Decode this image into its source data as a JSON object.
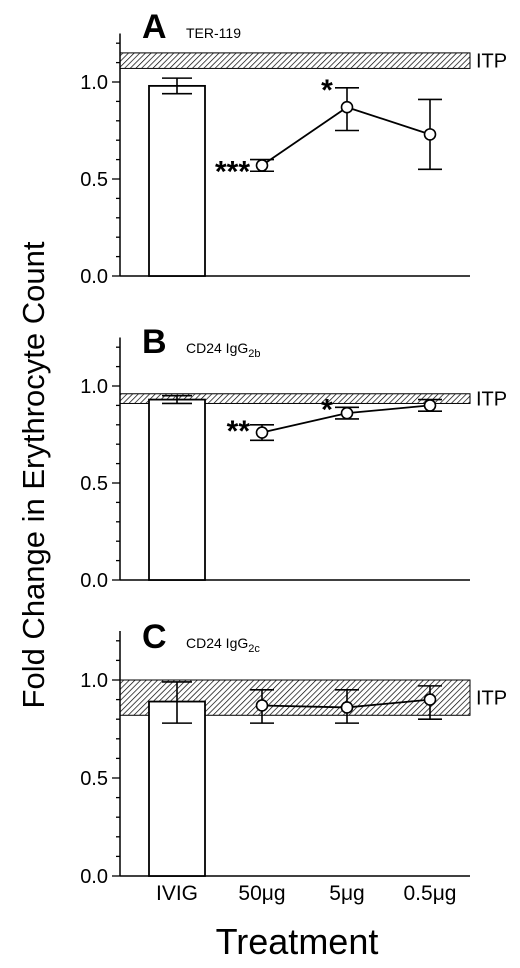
{
  "figure": {
    "ylabel": "Fold Change in Erythrocyte Count",
    "xlabel": "Treatment"
  },
  "chart_data": [
    {
      "type": "bar",
      "panel_letter": "A",
      "title": "TER-119",
      "title_sub": "",
      "categories": [
        "IVIG",
        "50μg",
        "5μg",
        "0.5μg"
      ],
      "bar": {
        "category": "IVIG",
        "value": 0.98,
        "err_low": 0.94,
        "err_high": 1.02
      },
      "line_points": [
        {
          "category": "50μg",
          "value": 0.57,
          "err_low": 0.54,
          "err_high": 0.6,
          "significance": "***"
        },
        {
          "category": "5μg",
          "value": 0.87,
          "err_low": 0.75,
          "err_high": 0.97,
          "significance": "*"
        },
        {
          "category": "0.5μg",
          "value": 0.73,
          "err_low": 0.55,
          "err_high": 0.91,
          "significance": ""
        }
      ],
      "reference_band": {
        "label": "ITP",
        "low": 1.07,
        "high": 1.15
      },
      "ylim": [
        0,
        1.25
      ],
      "yticks": [
        "0.0",
        "0.5",
        "1.0"
      ]
    },
    {
      "type": "bar",
      "panel_letter": "B",
      "title": "CD24 IgG",
      "title_sub": "2b",
      "categories": [
        "IVIG",
        "50μg",
        "5μg",
        "0.5μg"
      ],
      "bar": {
        "category": "IVIG",
        "value": 0.93,
        "err_low": 0.91,
        "err_high": 0.95
      },
      "line_points": [
        {
          "category": "50μg",
          "value": 0.76,
          "err_low": 0.72,
          "err_high": 0.8,
          "significance": "**"
        },
        {
          "category": "5μg",
          "value": 0.86,
          "err_low": 0.83,
          "err_high": 0.89,
          "significance": "*"
        },
        {
          "category": "0.5μg",
          "value": 0.9,
          "err_low": 0.87,
          "err_high": 0.93,
          "significance": ""
        }
      ],
      "reference_band": {
        "label": "ITP",
        "low": 0.91,
        "high": 0.96
      },
      "ylim": [
        0,
        1.25
      ],
      "yticks": [
        "0.0",
        "0.5",
        "1.0"
      ]
    },
    {
      "type": "bar",
      "panel_letter": "C",
      "title": "CD24 IgG",
      "title_sub": "2c",
      "categories": [
        "IVIG",
        "50μg",
        "5μg",
        "0.5μg"
      ],
      "bar": {
        "category": "IVIG",
        "value": 0.89,
        "err_low": 0.78,
        "err_high": 0.99
      },
      "line_points": [
        {
          "category": "50μg",
          "value": 0.87,
          "err_low": 0.78,
          "err_high": 0.95,
          "significance": ""
        },
        {
          "category": "5μg",
          "value": 0.86,
          "err_low": 0.78,
          "err_high": 0.95,
          "significance": ""
        },
        {
          "category": "0.5μg",
          "value": 0.9,
          "err_low": 0.8,
          "err_high": 0.97,
          "significance": ""
        }
      ],
      "reference_band": {
        "label": "ITP",
        "low": 0.82,
        "high": 1.0
      },
      "ylim": [
        0,
        1.25
      ],
      "yticks": [
        "0.0",
        "0.5",
        "1.0"
      ]
    }
  ]
}
